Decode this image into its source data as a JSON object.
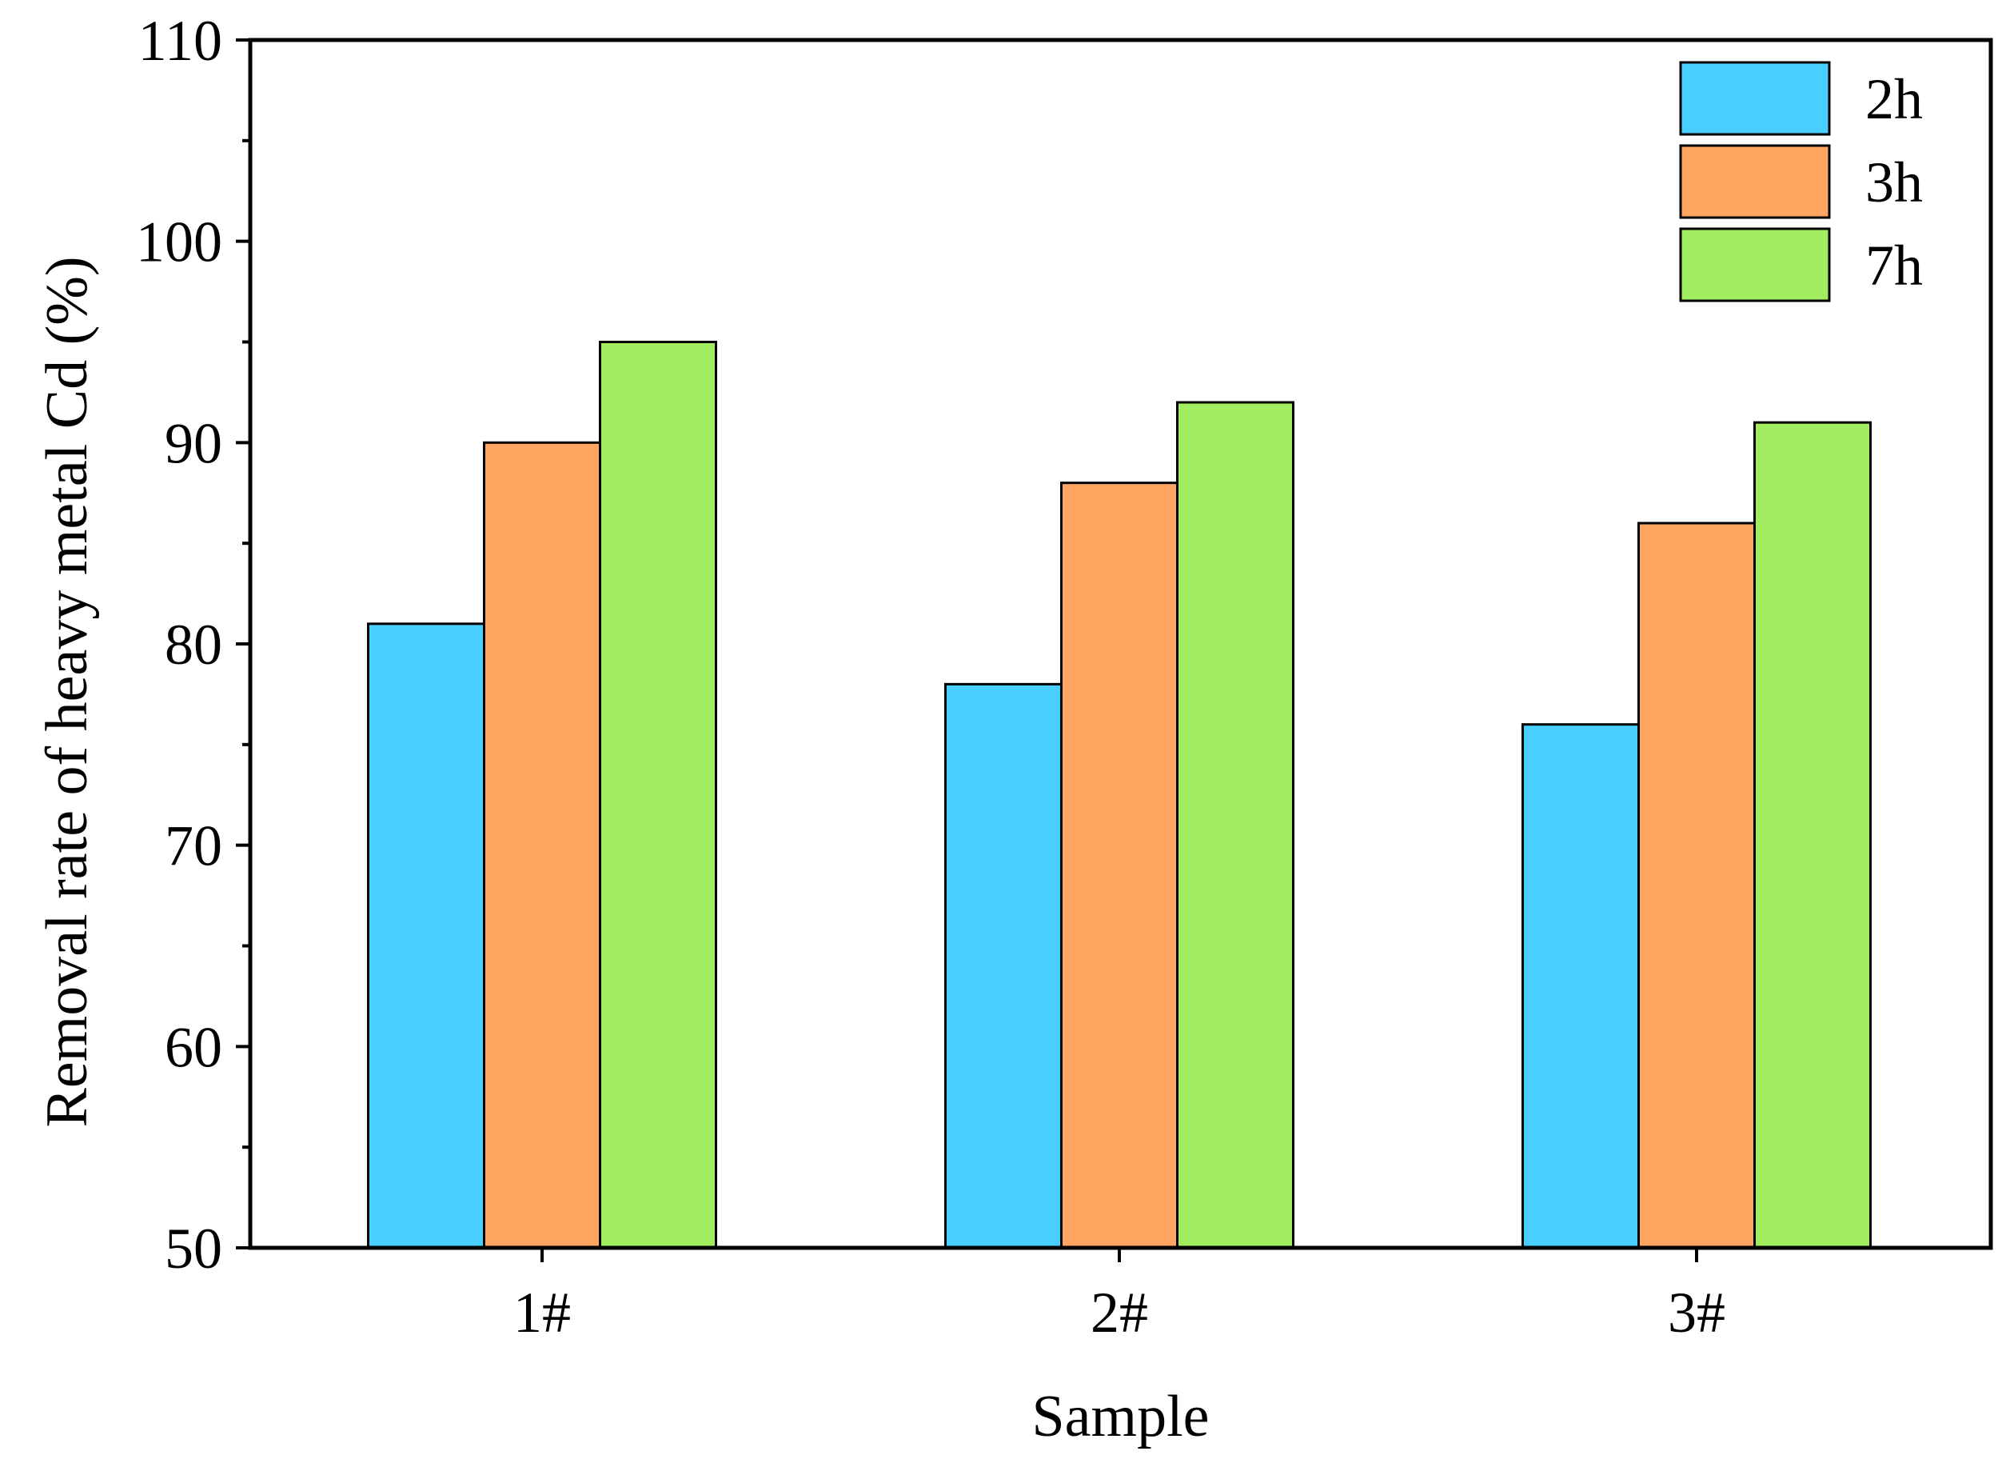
{
  "chart_data": {
    "type": "bar",
    "title": "",
    "xlabel": "Sample",
    "ylabel": "Removal rate of heavy metal Cd (%)",
    "categories": [
      "1#",
      "2#",
      "3#"
    ],
    "series": [
      {
        "name": "2h",
        "color": "#48CFFF",
        "values": [
          81,
          78,
          76
        ]
      },
      {
        "name": "3h",
        "color": "#FFA562",
        "values": [
          90,
          88,
          86
        ]
      },
      {
        "name": "7h",
        "color": "#A2EC60",
        "values": [
          95,
          92,
          91
        ]
      }
    ],
    "ylim": [
      50,
      110
    ],
    "yticks": [
      "50",
      "60",
      "70",
      "80",
      "90",
      "100",
      "110"
    ],
    "ytick_values": [
      50,
      60,
      70,
      80,
      90,
      100,
      110
    ],
    "yminor_values": [
      55,
      65,
      75,
      85,
      95,
      105
    ],
    "grid": false,
    "legend_position": "top-right"
  }
}
